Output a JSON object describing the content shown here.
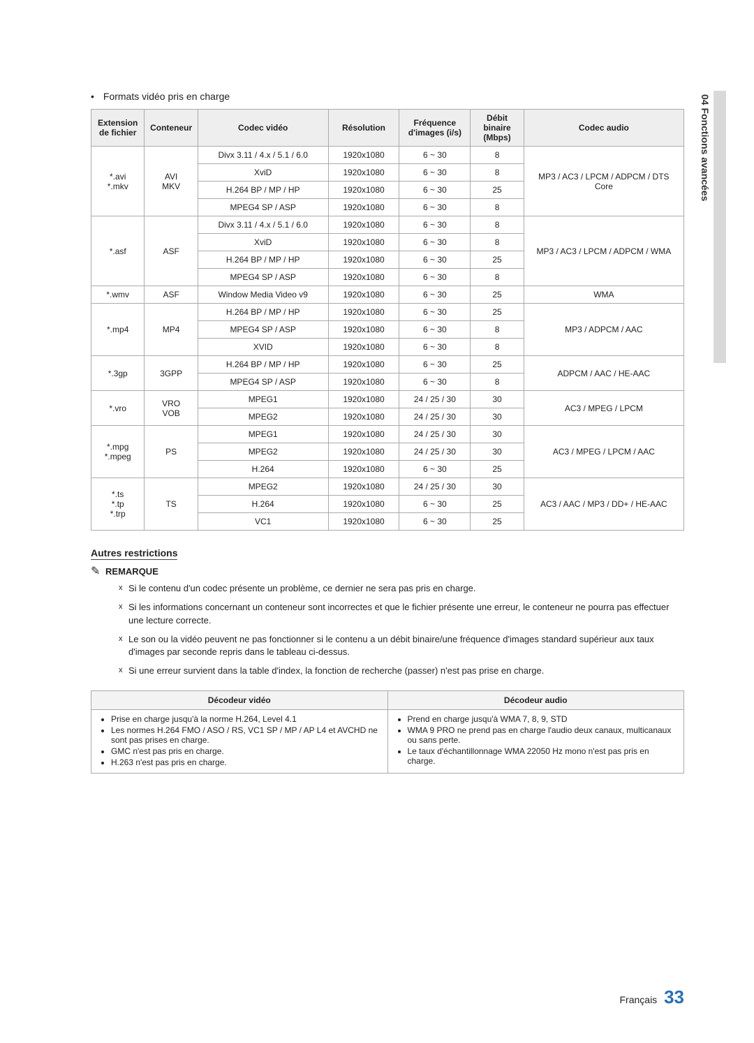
{
  "sideLabel": "04  Fonctions avancées",
  "bulletIntro": "Formats vidéo pris en charge",
  "table": {
    "headers": [
      "Extension de fichier",
      "Conteneur",
      "Codec vidéo",
      "Résolution",
      "Fréquence d'images (i/s)",
      "Débit binaire (Mbps)",
      "Codec audio"
    ],
    "groups": [
      {
        "ext": "*.avi\n*.mkv",
        "container": "AVI\nMKV",
        "rows": [
          {
            "codec": "Divx 3.11 / 4.x / 5.1 / 6.0",
            "res": "1920x1080",
            "freq": "6 ~ 30",
            "bit": "8"
          },
          {
            "codec": "XviD",
            "res": "1920x1080",
            "freq": "6 ~ 30",
            "bit": "8"
          },
          {
            "codec": "H.264 BP / MP / HP",
            "res": "1920x1080",
            "freq": "6 ~ 30",
            "bit": "25"
          },
          {
            "codec": "MPEG4 SP / ASP",
            "res": "1920x1080",
            "freq": "6 ~ 30",
            "bit": "8"
          }
        ],
        "audio": "MP3 / AC3 / LPCM / ADPCM / DTS Core"
      },
      {
        "ext": "*.asf",
        "container": "ASF",
        "rows": [
          {
            "codec": "Divx 3.11 / 4.x / 5.1 / 6.0",
            "res": "1920x1080",
            "freq": "6 ~ 30",
            "bit": "8"
          },
          {
            "codec": "XviD",
            "res": "1920x1080",
            "freq": "6 ~ 30",
            "bit": "8"
          },
          {
            "codec": "H.264 BP / MP / HP",
            "res": "1920x1080",
            "freq": "6 ~ 30",
            "bit": "25"
          },
          {
            "codec": "MPEG4 SP / ASP",
            "res": "1920x1080",
            "freq": "6 ~ 30",
            "bit": "8"
          }
        ],
        "audio": "MP3 / AC3 / LPCM / ADPCM / WMA"
      },
      {
        "ext": "*.wmv",
        "container": "ASF",
        "rows": [
          {
            "codec": "Window Media Video v9",
            "res": "1920x1080",
            "freq": "6 ~ 30",
            "bit": "25"
          }
        ],
        "audio": "WMA"
      },
      {
        "ext": "*.mp4",
        "container": "MP4",
        "rows": [
          {
            "codec": "H.264 BP / MP / HP",
            "res": "1920x1080",
            "freq": "6 ~ 30",
            "bit": "25"
          },
          {
            "codec": "MPEG4 SP / ASP",
            "res": "1920x1080",
            "freq": "6 ~ 30",
            "bit": "8"
          },
          {
            "codec": "XVID",
            "res": "1920x1080",
            "freq": "6 ~ 30",
            "bit": "8"
          }
        ],
        "audio": "MP3 / ADPCM / AAC"
      },
      {
        "ext": "*.3gp",
        "container": "3GPP",
        "rows": [
          {
            "codec": "H.264 BP / MP / HP",
            "res": "1920x1080",
            "freq": "6 ~ 30",
            "bit": "25"
          },
          {
            "codec": "MPEG4 SP / ASP",
            "res": "1920x1080",
            "freq": "6 ~ 30",
            "bit": "8"
          }
        ],
        "audio": "ADPCM / AAC / HE-AAC"
      },
      {
        "ext": "*.vro",
        "container": "VRO\nVOB",
        "rows": [
          {
            "codec": "MPEG1",
            "res": "1920x1080",
            "freq": "24 / 25 / 30",
            "bit": "30"
          },
          {
            "codec": "MPEG2",
            "res": "1920x1080",
            "freq": "24 / 25 / 30",
            "bit": "30"
          }
        ],
        "audio": "AC3 / MPEG / LPCM"
      },
      {
        "ext": "*.mpg\n*.mpeg",
        "container": "PS",
        "rows": [
          {
            "codec": "MPEG1",
            "res": "1920x1080",
            "freq": "24 / 25 / 30",
            "bit": "30"
          },
          {
            "codec": "MPEG2",
            "res": "1920x1080",
            "freq": "24 / 25 / 30",
            "bit": "30"
          },
          {
            "codec": "H.264",
            "res": "1920x1080",
            "freq": "6 ~ 30",
            "bit": "25"
          }
        ],
        "audio": "AC3 / MPEG / LPCM / AAC"
      },
      {
        "ext": "*.ts\n*.tp\n*.trp",
        "container": "TS",
        "rows": [
          {
            "codec": "MPEG2",
            "res": "1920x1080",
            "freq": "24 / 25 / 30",
            "bit": "30"
          },
          {
            "codec": "H.264",
            "res": "1920x1080",
            "freq": "6 ~ 30",
            "bit": "25"
          },
          {
            "codec": "VC1",
            "res": "1920x1080",
            "freq": "6 ~ 30",
            "bit": "25"
          }
        ],
        "audio": "AC3 / AAC / MP3 / DD+ / HE-AAC"
      }
    ]
  },
  "restrictionsTitle": "Autres restrictions",
  "remarqueLabel": "REMARQUE",
  "notes": [
    "Si le contenu d'un codec présente un problème, ce dernier ne sera pas pris en charge.",
    "Si les informations concernant un conteneur sont incorrectes et que le fichier présente une erreur, le conteneur ne pourra pas effectuer une lecture correcte.",
    "Le son ou la vidéo peuvent ne pas fonctionner si le contenu a un débit binaire/une fréquence d'images standard supérieur aux taux d'images par seconde repris dans le tableau ci-dessus.",
    "Si une erreur survient dans la table d'index, la fonction de recherche (passer) n'est pas prise en charge."
  ],
  "decoders": {
    "videoHeader": "Décodeur vidéo",
    "audioHeader": "Décodeur audio",
    "video": [
      "Prise en charge jusqu'à la norme H.264, Level 4.1",
      "Les normes H.264 FMO / ASO / RS, VC1 SP / MP / AP L4 et AVCHD ne sont pas prises en charge.",
      "GMC n'est pas pris en charge.",
      "H.263 n'est pas pris en charge."
    ],
    "audio": [
      "Prend en charge jusqu'à WMA 7, 8, 9, STD",
      "WMA 9 PRO ne prend pas en charge l'audio deux canaux, multicanaux ou sans perte.",
      "Le taux d'échantillonnage WMA 22050 Hz mono n'est pas pris en charge."
    ]
  },
  "footerLang": "Français",
  "footerPage": "33"
}
